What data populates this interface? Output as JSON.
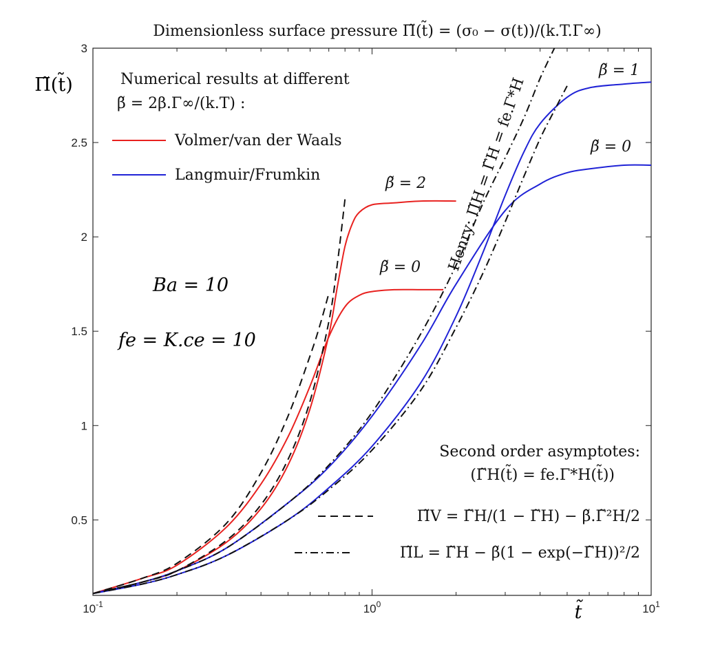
{
  "chart_data": {
    "type": "line",
    "title": "Dimensionless surface pressure Π̃(t̃) = (σ₀ − σ(t))/(k.T.Γ∞)",
    "xlabel": "t̃",
    "ylabel": "Π̃(t̃)",
    "xscale": "log",
    "xlim": [
      0.1,
      10
    ],
    "ylim": [
      0.1,
      3
    ],
    "x_ticks": [
      0.1,
      1,
      10
    ],
    "x_tick_labels": [
      {
        "base": "10",
        "exp": "-1"
      },
      {
        "base": "10",
        "exp": "0"
      },
      {
        "base": "10",
        "exp": "1"
      }
    ],
    "y_ticks": [
      0.5,
      1,
      1.5,
      2,
      2.5,
      3
    ],
    "y_tick_labels": [
      "0.5",
      "1",
      "1.5",
      "2",
      "2.5",
      "3"
    ],
    "grid": false,
    "legend_top": {
      "heading_line1": "Numerical results at different",
      "heading_line2": "β̃ = 2β.Γ∞/(k.T) :",
      "entries": [
        {
          "label": "Volmer/van der Waals",
          "color": "#e8211f",
          "style": "solid"
        },
        {
          "label": "Langmuir/Frumkin",
          "color": "#1f22d6",
          "style": "solid"
        }
      ]
    },
    "legend_bottom": {
      "heading_line1": "Second order asymptotes:",
      "heading_line2": "(Γ̃H(t̃) = fe.Γ*H(t̃))",
      "entries": [
        {
          "label": "Π̃V = Γ̃H/(1 − Γ̃H) − β̃.Γ̃²H/2",
          "color": "#111111",
          "style": "dashed"
        },
        {
          "label": "Π̃L = Γ̃H − β̃(1 − exp(−Γ̃H))²/2",
          "color": "#111111",
          "style": "dashdot"
        }
      ]
    },
    "annotations": {
      "ba": "Ba = 10",
      "fe": "fe = K.ce = 10",
      "henry": "Henry: Π̃H = Γ̃H = fe.Γ*H",
      "vdw_beta2": "β̃ = 2",
      "vdw_beta0": "β̃ = 0",
      "lang_beta1": "β̃ = 1",
      "lang_beta0": "β̃ = 0"
    },
    "series": [
      {
        "name": "Volmer/van der Waals β̃=0",
        "color": "#e8211f",
        "style": "solid",
        "x": [
          0.1,
          0.15,
          0.2,
          0.3,
          0.4,
          0.5,
          0.6,
          0.7,
          0.8,
          0.9,
          1.0,
          1.2,
          1.5,
          1.8
        ],
        "y": [
          0.11,
          0.19,
          0.26,
          0.46,
          0.69,
          0.94,
          1.21,
          1.47,
          1.63,
          1.69,
          1.71,
          1.72,
          1.72,
          1.72
        ]
      },
      {
        "name": "Volmer/van der Waals β̃=2",
        "color": "#e8211f",
        "style": "solid",
        "x": [
          0.1,
          0.15,
          0.2,
          0.3,
          0.4,
          0.5,
          0.6,
          0.7,
          0.75,
          0.8,
          0.85,
          0.9,
          1.0,
          1.2,
          1.5,
          2.0
        ],
        "y": [
          0.11,
          0.17,
          0.23,
          0.38,
          0.56,
          0.79,
          1.09,
          1.48,
          1.73,
          1.95,
          2.07,
          2.13,
          2.17,
          2.18,
          2.19,
          2.19
        ]
      },
      {
        "name": "Langmuir/Frumkin β̃=0",
        "color": "#1f22d6",
        "style": "solid",
        "x": [
          0.1,
          0.15,
          0.2,
          0.3,
          0.5,
          0.7,
          1.0,
          1.5,
          2.0,
          3.0,
          4.0,
          5.0,
          6.0,
          8.0,
          10.0
        ],
        "y": [
          0.11,
          0.17,
          0.23,
          0.35,
          0.59,
          0.78,
          1.05,
          1.43,
          1.75,
          2.14,
          2.28,
          2.34,
          2.36,
          2.38,
          2.38
        ]
      },
      {
        "name": "Langmuir/Frumkin β̃=1",
        "color": "#1f22d6",
        "style": "solid",
        "x": [
          0.1,
          0.15,
          0.2,
          0.3,
          0.5,
          0.7,
          1.0,
          1.5,
          2.0,
          2.5,
          3.0,
          3.5,
          4.0,
          5.0,
          6.0,
          8.0,
          10.0
        ],
        "y": [
          0.11,
          0.16,
          0.21,
          0.31,
          0.5,
          0.67,
          0.89,
          1.23,
          1.58,
          1.92,
          2.22,
          2.45,
          2.6,
          2.74,
          2.79,
          2.81,
          2.82
        ]
      },
      {
        "name": "Π̃V asymptote β̃=0",
        "color": "#111111",
        "style": "dashed",
        "x": [
          0.1,
          0.15,
          0.2,
          0.3,
          0.4,
          0.5,
          0.6,
          0.65,
          0.7
        ],
        "y": [
          0.11,
          0.19,
          0.27,
          0.48,
          0.75,
          1.05,
          1.37,
          1.53,
          1.7
        ]
      },
      {
        "name": "Π̃V asymptote β̃=2",
        "color": "#111111",
        "style": "dashed",
        "x": [
          0.1,
          0.15,
          0.2,
          0.3,
          0.4,
          0.5,
          0.6,
          0.7,
          0.75,
          0.8
        ],
        "y": [
          0.11,
          0.17,
          0.23,
          0.39,
          0.58,
          0.82,
          1.13,
          1.55,
          1.85,
          2.2
        ]
      },
      {
        "name": "Henry Π̃H",
        "color": "#111111",
        "style": "dashdot",
        "x": [
          0.1,
          0.15,
          0.2,
          0.3,
          0.5,
          0.7,
          1.0,
          1.5,
          2.0,
          2.5,
          3.0,
          3.5,
          4.0,
          4.5
        ],
        "y": [
          0.11,
          0.17,
          0.23,
          0.35,
          0.59,
          0.79,
          1.07,
          1.49,
          1.85,
          2.18,
          2.42,
          2.63,
          2.84,
          3.0
        ]
      },
      {
        "name": "Π̃L asymptote β̃=1",
        "color": "#111111",
        "style": "dashdot",
        "x": [
          0.1,
          0.15,
          0.2,
          0.3,
          0.5,
          0.7,
          1.0,
          1.5,
          2.0,
          2.5,
          3.0,
          3.5,
          4.0,
          4.5,
          5.0
        ],
        "y": [
          0.11,
          0.16,
          0.21,
          0.31,
          0.5,
          0.66,
          0.87,
          1.19,
          1.52,
          1.81,
          2.08,
          2.32,
          2.52,
          2.67,
          2.8
        ]
      }
    ]
  }
}
